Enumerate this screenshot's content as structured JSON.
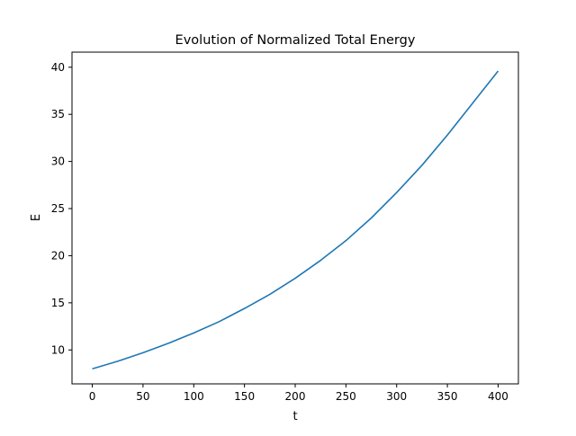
{
  "chart_data": {
    "type": "line",
    "title": "Evolution of Normalized Total Energy",
    "xlabel": "t",
    "ylabel": "E",
    "xlim": [
      -20,
      420
    ],
    "ylim": [
      6.4,
      41.6
    ],
    "xticks": [
      0,
      50,
      100,
      150,
      200,
      250,
      300,
      350,
      400
    ],
    "yticks": [
      10,
      15,
      20,
      25,
      30,
      35,
      40
    ],
    "grid": false,
    "series": [
      {
        "color": "#1f77b4",
        "x": [
          0,
          25,
          50,
          75,
          100,
          125,
          150,
          175,
          200,
          225,
          250,
          275,
          300,
          325,
          350,
          375,
          400
        ],
        "y": [
          8.0,
          8.8,
          9.7,
          10.7,
          11.8,
          13.0,
          14.4,
          15.9,
          17.6,
          19.5,
          21.6,
          24.0,
          26.7,
          29.6,
          32.8,
          36.2,
          39.6
        ]
      }
    ]
  }
}
